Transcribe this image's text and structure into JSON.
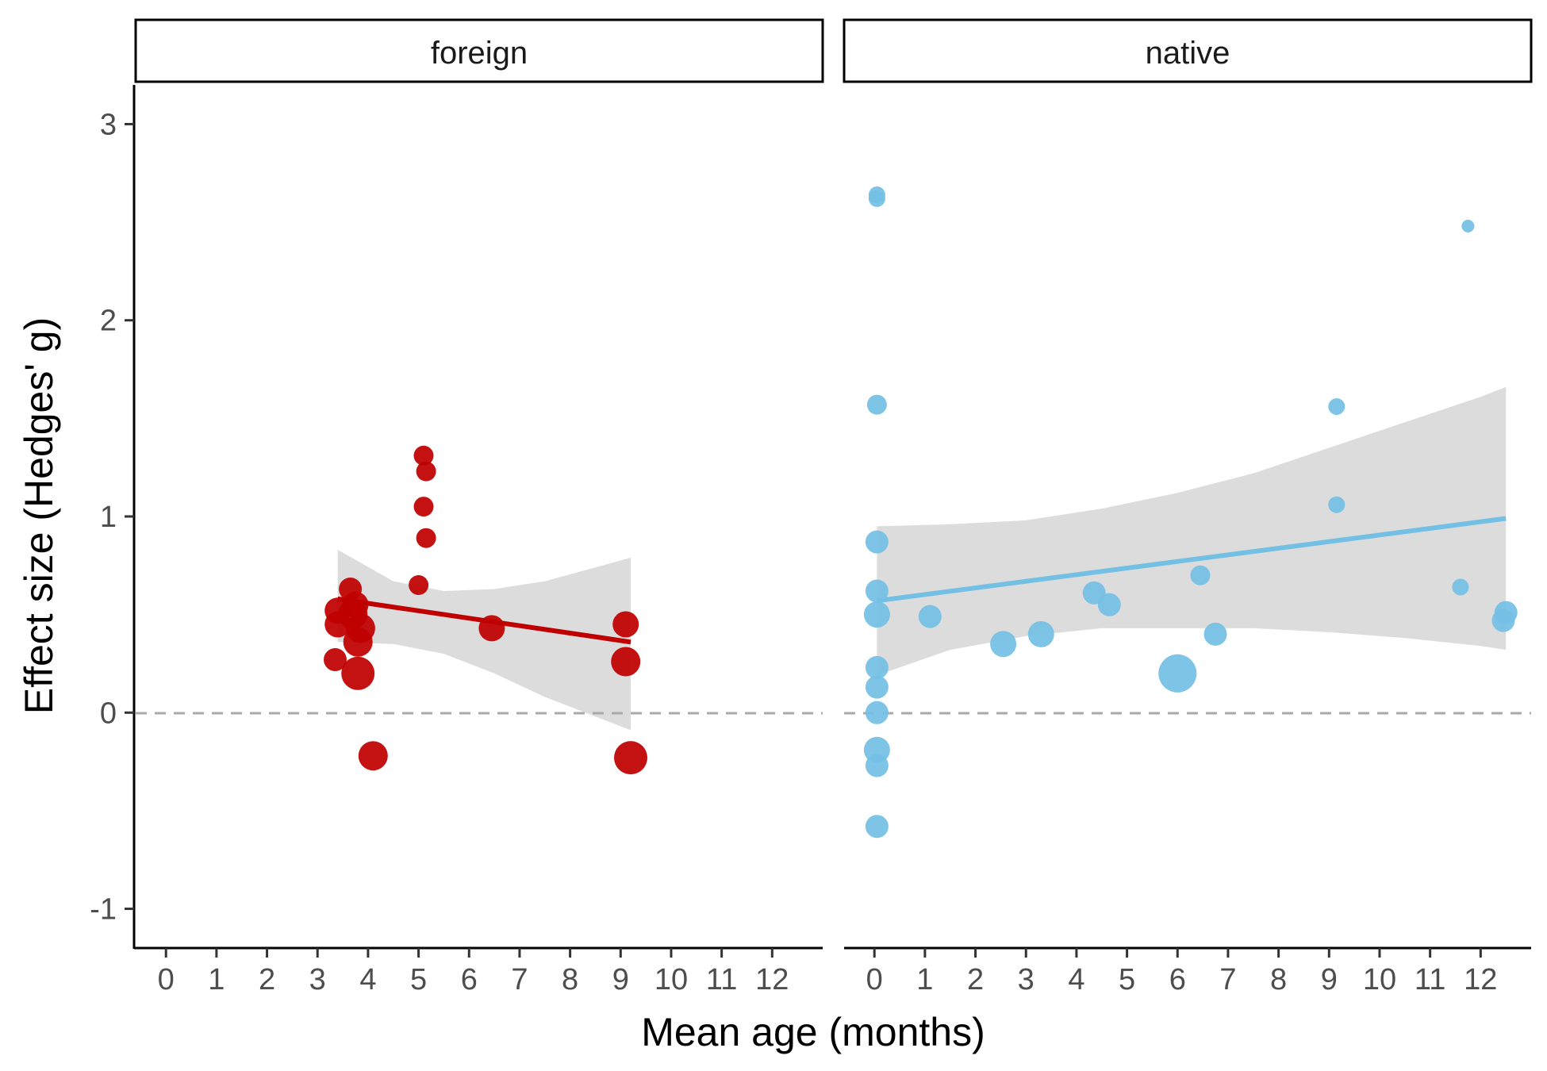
{
  "colors": {
    "foreign": "#C00000",
    "native": "#74C0E4",
    "ribbon": "#D3D3D3",
    "zero_line": "#AAAAAA",
    "axis": "#000000"
  },
  "chart_data": {
    "type": "scatter",
    "title": "",
    "xlabel": "Mean age (months)",
    "ylabel": "Effect size (Hedges' g)",
    "xlim": [
      -0.6,
      13.0
    ],
    "ylim": [
      -1.2,
      3.2
    ],
    "x_ticks": [
      0,
      1,
      2,
      3,
      4,
      5,
      6,
      7,
      8,
      9,
      10,
      11,
      12
    ],
    "y_ticks": [
      -1,
      0,
      1,
      2,
      3
    ],
    "reference_line": {
      "y": 0,
      "style": "dashed"
    },
    "grid": false,
    "legend": "none",
    "panels": [
      {
        "name": "foreign",
        "color": "#C00000",
        "points": [
          {
            "x": 3.4,
            "y": 0.52,
            "size": 4
          },
          {
            "x": 3.4,
            "y": 0.45,
            "size": 4
          },
          {
            "x": 3.35,
            "y": 0.27,
            "size": 3
          },
          {
            "x": 3.65,
            "y": 0.63,
            "size": 3
          },
          {
            "x": 3.7,
            "y": 0.5,
            "size": 5
          },
          {
            "x": 3.75,
            "y": 0.55,
            "size": 4
          },
          {
            "x": 3.85,
            "y": 0.43,
            "size": 5
          },
          {
            "x": 3.8,
            "y": 0.36,
            "size": 5
          },
          {
            "x": 3.8,
            "y": 0.2,
            "size": 6
          },
          {
            "x": 4.1,
            "y": -0.22,
            "size": 5
          },
          {
            "x": 5.0,
            "y": 0.65,
            "size": 2
          },
          {
            "x": 5.1,
            "y": 1.31,
            "size": 2
          },
          {
            "x": 5.15,
            "y": 1.23,
            "size": 2
          },
          {
            "x": 5.1,
            "y": 1.05,
            "size": 2
          },
          {
            "x": 5.15,
            "y": 0.89,
            "size": 2
          },
          {
            "x": 6.45,
            "y": 0.43,
            "size": 4
          },
          {
            "x": 9.1,
            "y": 0.45,
            "size": 4
          },
          {
            "x": 9.1,
            "y": 0.26,
            "size": 5
          },
          {
            "x": 9.2,
            "y": -0.23,
            "size": 6
          }
        ],
        "fit": {
          "x": [
            3.4,
            9.2
          ],
          "y": [
            0.58,
            0.36
          ]
        },
        "ribbon": {
          "x": [
            3.4,
            4.5,
            5.5,
            6.5,
            7.5,
            8.5,
            9.2
          ],
          "upper": [
            0.83,
            0.67,
            0.62,
            0.63,
            0.67,
            0.74,
            0.79
          ],
          "lower": [
            0.36,
            0.35,
            0.3,
            0.2,
            0.08,
            -0.02,
            -0.09
          ]
        }
      },
      {
        "name": "native",
        "color": "#74C0E4",
        "points": [
          {
            "x": 0.05,
            "y": 2.64,
            "size": 1
          },
          {
            "x": 0.05,
            "y": 2.62,
            "size": 1
          },
          {
            "x": 0.05,
            "y": 1.57,
            "size": 2
          },
          {
            "x": 0.05,
            "y": 0.87,
            "size": 3
          },
          {
            "x": 0.05,
            "y": 0.62,
            "size": 3
          },
          {
            "x": 0.05,
            "y": 0.5,
            "size": 4
          },
          {
            "x": 0.05,
            "y": 0.23,
            "size": 3
          },
          {
            "x": 0.05,
            "y": 0.13,
            "size": 3
          },
          {
            "x": 0.05,
            "y": 0.0,
            "size": 3
          },
          {
            "x": 0.05,
            "y": -0.19,
            "size": 4
          },
          {
            "x": 0.05,
            "y": -0.27,
            "size": 3
          },
          {
            "x": 0.05,
            "y": -0.58,
            "size": 3
          },
          {
            "x": 1.1,
            "y": 0.49,
            "size": 3
          },
          {
            "x": 2.55,
            "y": 0.35,
            "size": 4
          },
          {
            "x": 3.3,
            "y": 0.4,
            "size": 4
          },
          {
            "x": 4.35,
            "y": 0.61,
            "size": 3
          },
          {
            "x": 4.65,
            "y": 0.55,
            "size": 3
          },
          {
            "x": 6.0,
            "y": 0.2,
            "size": 7
          },
          {
            "x": 6.45,
            "y": 0.7,
            "size": 2
          },
          {
            "x": 6.75,
            "y": 0.4,
            "size": 3
          },
          {
            "x": 9.15,
            "y": 1.56,
            "size": 1
          },
          {
            "x": 9.15,
            "y": 1.06,
            "size": 1
          },
          {
            "x": 11.6,
            "y": 0.64,
            "size": 1
          },
          {
            "x": 11.75,
            "y": 2.48,
            "size": 0
          },
          {
            "x": 12.5,
            "y": 0.51,
            "size": 3
          },
          {
            "x": 12.45,
            "y": 0.47,
            "size": 3
          }
        ],
        "fit": {
          "x": [
            0.05,
            12.5
          ],
          "y": [
            0.57,
            0.99
          ]
        },
        "ribbon": {
          "x": [
            0.05,
            1.5,
            3,
            4.5,
            6,
            7.5,
            9,
            10.5,
            12,
            12.5
          ],
          "upper": [
            0.95,
            0.96,
            0.98,
            1.04,
            1.12,
            1.22,
            1.35,
            1.48,
            1.61,
            1.66
          ],
          "lower": [
            0.19,
            0.32,
            0.39,
            0.43,
            0.43,
            0.43,
            0.41,
            0.38,
            0.34,
            0.32
          ]
        }
      }
    ]
  }
}
